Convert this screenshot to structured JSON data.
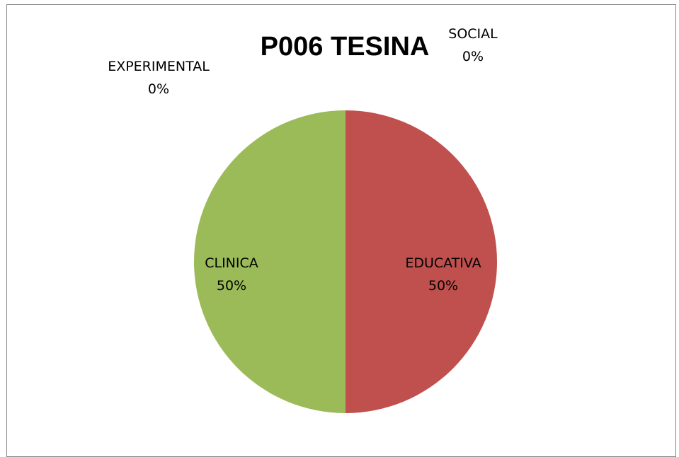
{
  "chart_data": {
    "type": "pie",
    "title": "P006 TESINA",
    "slices": [
      {
        "label": "EDUCATIVA",
        "value": 50,
        "percent_label": "50%",
        "color": "#C0504D"
      },
      {
        "label": "CLINICA",
        "value": 50,
        "percent_label": "50%",
        "color": "#9BBB59"
      },
      {
        "label": "EXPERIMENTAL",
        "value": 0,
        "percent_label": "0%",
        "color": "#8064A2"
      },
      {
        "label": "SOCIAL",
        "value": 0,
        "percent_label": "0%",
        "color": "#4F81BD"
      }
    ],
    "legend": "none",
    "label_style": "category-and-percent"
  }
}
